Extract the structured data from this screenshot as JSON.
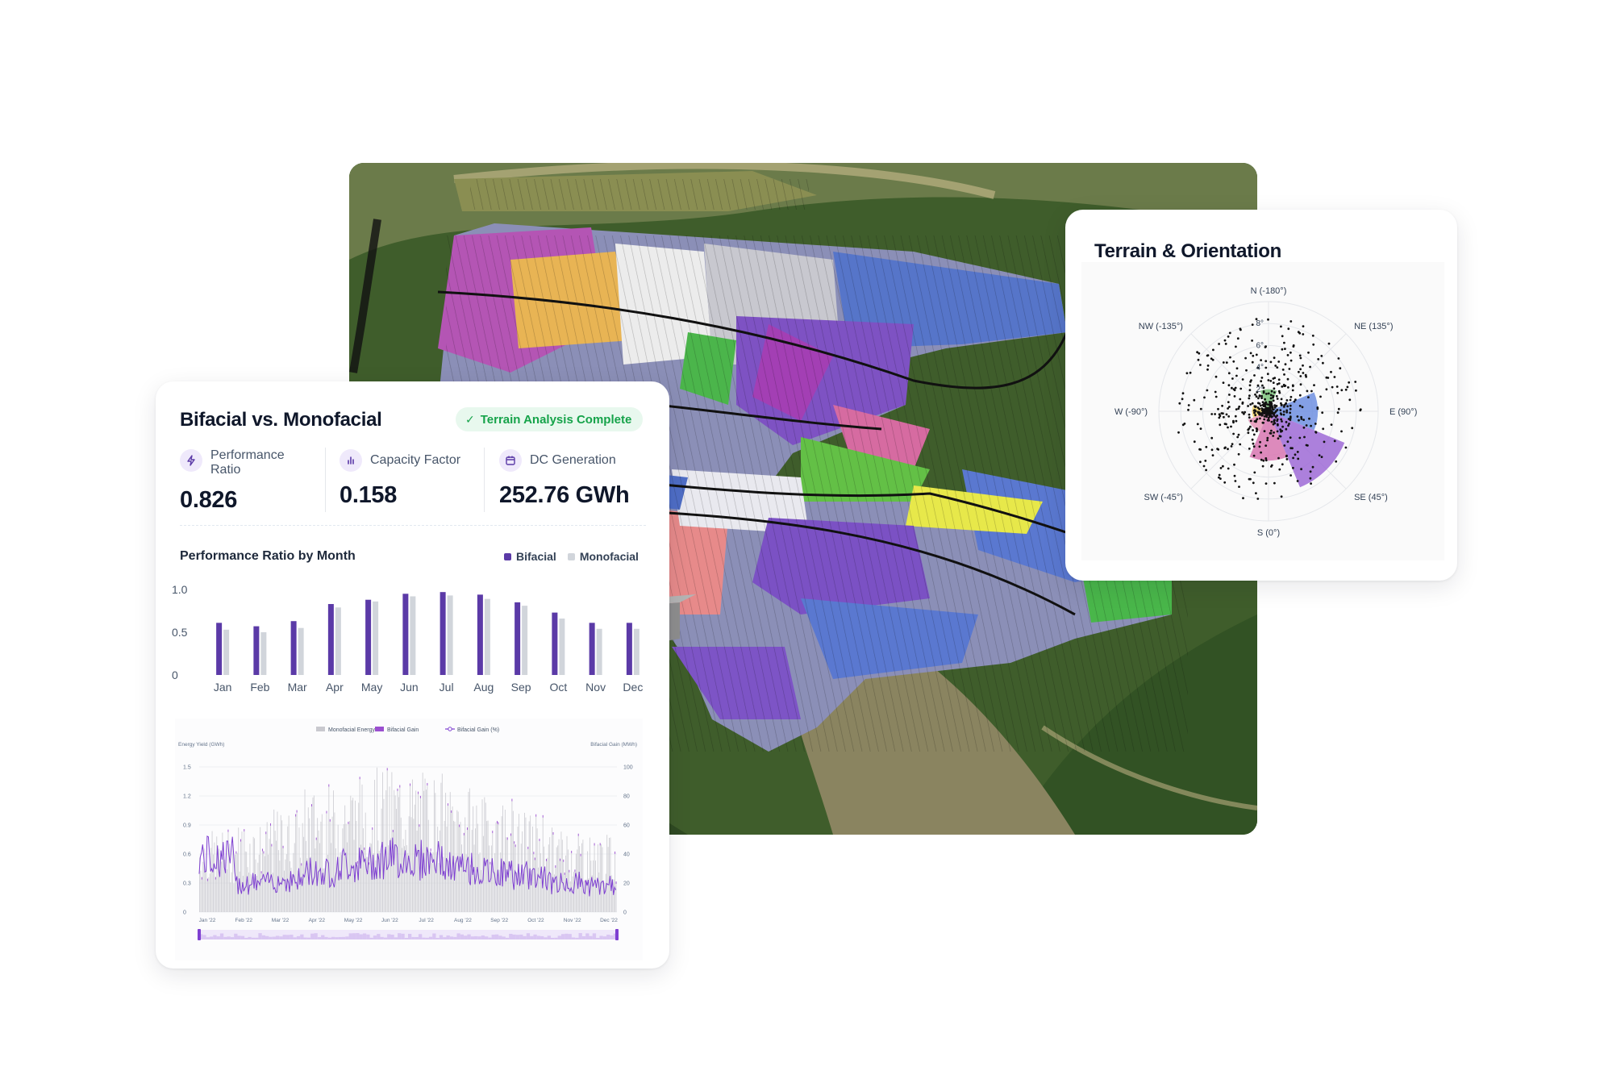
{
  "bifacial_card": {
    "title": "Bifacial vs. Monofacial",
    "badge": "Terrain Analysis Complete",
    "metrics": [
      {
        "label": "Performance Ratio",
        "value": "0.826",
        "icon": "lightning-icon"
      },
      {
        "label": "Capacity Factor",
        "value": "0.158",
        "icon": "bar-chart-icon"
      },
      {
        "label": "DC Generation",
        "value": "252.76 GWh",
        "icon": "calendar-icon"
      }
    ],
    "chart_title": "Performance Ratio by Month",
    "legend": [
      "Bifacial",
      "Monofacial"
    ]
  },
  "terrain_card": {
    "title": "Terrain & Orientation"
  },
  "colors": {
    "bifacial": "#5b3aa7",
    "monofacial": "#d1d5db",
    "badge_bg": "#e8f8ee",
    "badge_text": "#16a34a",
    "bifacial_gain_line": "#7e3fd1"
  },
  "chart_data": [
    {
      "type": "bar",
      "categories": [
        "Jan",
        "Feb",
        "Mar",
        "Apr",
        "May",
        "Jun",
        "Jul",
        "Aug",
        "Sep",
        "Oct",
        "Nov",
        "Dec"
      ],
      "series": [
        {
          "name": "Bifacial",
          "values": [
            0.61,
            0.57,
            0.63,
            0.83,
            0.88,
            0.95,
            0.97,
            0.94,
            0.85,
            0.73,
            0.61,
            0.61
          ]
        },
        {
          "name": "Monofacial",
          "values": [
            0.53,
            0.5,
            0.55,
            0.79,
            0.86,
            0.92,
            0.93,
            0.89,
            0.81,
            0.66,
            0.54,
            0.54
          ]
        }
      ],
      "yticks": [
        "0",
        "0.5",
        "1.0"
      ],
      "ylim": [
        0,
        1.0
      ],
      "grid": false,
      "legend_position": "top-right"
    },
    {
      "type": "line",
      "legend": [
        "Monofacial Energy",
        "Bifacial Gain",
        "Bifacial Gain (%)"
      ],
      "ylabel_left": "Energy Yield (GWh)",
      "ylabel_right": "Bifacial Gain (MWh)",
      "yticks_left": [
        "0",
        "0.3",
        "0.6",
        "0.9",
        "1.2",
        "1.5"
      ],
      "yticks_right": [
        "0",
        "20",
        "40",
        "60",
        "80",
        "100"
      ],
      "x_ticks": [
        "Jan '22",
        "Feb '22",
        "Mar '22",
        "Apr '22",
        "May '22",
        "Jun '22",
        "Jul '22",
        "Aug '22",
        "Sep '22",
        "Oct '22",
        "Nov '22",
        "Dec '22"
      ],
      "ylim_left": [
        0,
        1.5
      ],
      "ylim_right": [
        0,
        100
      ],
      "monthly_mean_bars_gwh": [
        0.65,
        0.72,
        0.82,
        1.0,
        1.08,
        1.15,
        1.12,
        1.0,
        0.92,
        0.8,
        0.68,
        0.62
      ],
      "monthly_mean_gain_pct": [
        38,
        20,
        22,
        28,
        33,
        37,
        36,
        30,
        27,
        25,
        20,
        18
      ]
    },
    {
      "type": "polar",
      "direction_labels": [
        "N (-180°)",
        "NE (135°)",
        "E (90°)",
        "SE (45°)",
        "S (0°)",
        "SW (-45°)",
        "W (-90°)",
        "NW (-135°)"
      ],
      "radial_ticks": [
        "2°",
        "4°",
        "6°",
        "8°"
      ],
      "sectors": [
        {
          "direction": "N",
          "radius_deg": 2.0,
          "color": "#7ec47e"
        },
        {
          "direction": "E",
          "radius_deg": 4.5,
          "color": "#6f8fe0"
        },
        {
          "direction": "SE",
          "radius_deg": 7.5,
          "color": "#9e6ad6"
        },
        {
          "direction": "S",
          "radius_deg": 4.5,
          "color": "#d776b0"
        },
        {
          "direction": "SW",
          "radius_deg": 2.0,
          "color": "#e897b8"
        },
        {
          "direction": "W",
          "radius_deg": 1.5,
          "color": "#f1d46a"
        }
      ]
    }
  ]
}
